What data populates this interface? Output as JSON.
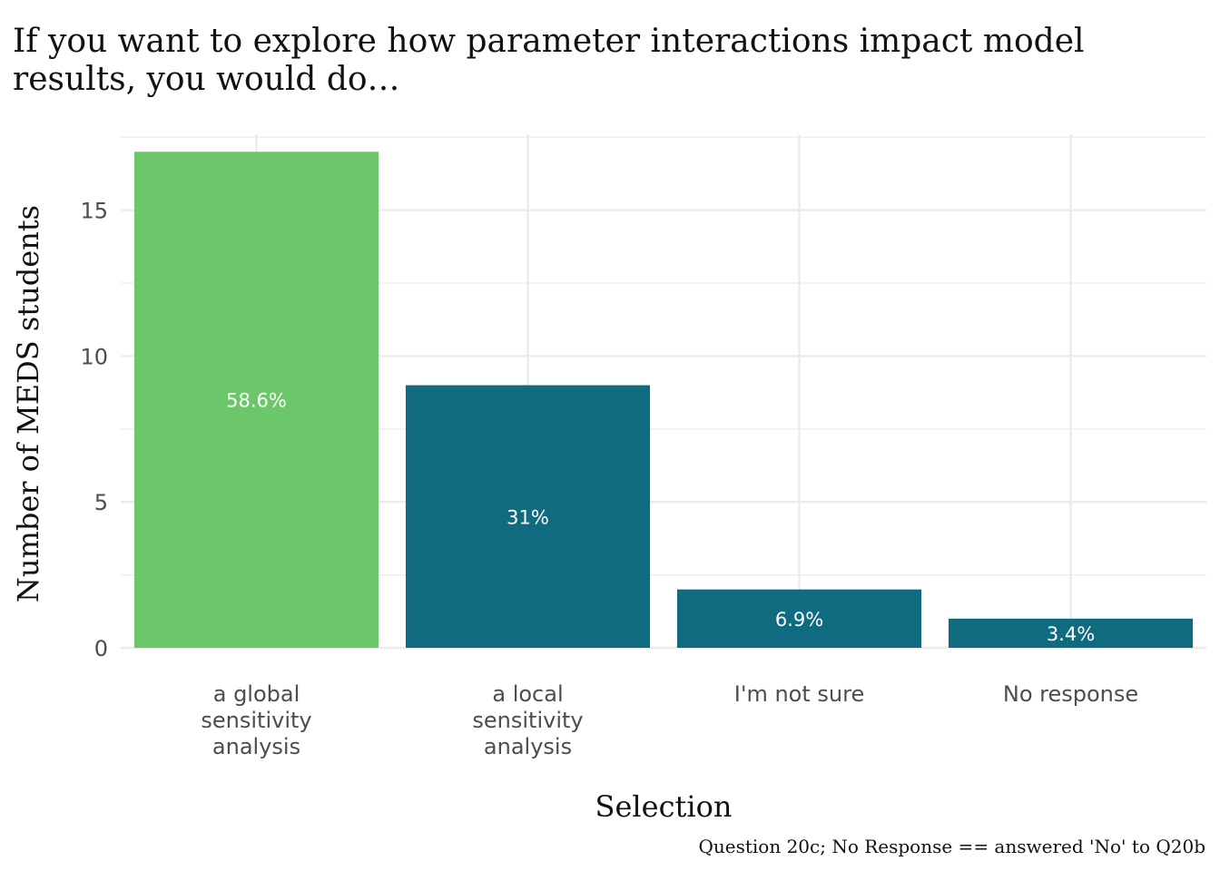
{
  "chart_data": {
    "type": "bar",
    "title_lines": [
      "If you want to explore how parameter interactions impact model",
      "results, you would do…"
    ],
    "categories": [
      [
        "a global",
        "sensitivity",
        "analysis"
      ],
      [
        "a local",
        "sensitivity",
        "analysis"
      ],
      [
        "I'm not sure"
      ],
      [
        "No response"
      ]
    ],
    "values": [
      17,
      9,
      2,
      1
    ],
    "data_labels": [
      "58.6%",
      "31%",
      "6.9%",
      "3.4%"
    ],
    "bar_colors": [
      "#6cc66a",
      "#106a80",
      "#106a80",
      "#106a80"
    ],
    "xlabel": "Selection",
    "ylabel": "Number of MEDS students",
    "caption": "Question 20c; No Response == answered 'No' to Q20b",
    "ylim": [
      0,
      17.6
    ],
    "yticks": [
      0,
      5,
      10,
      15
    ],
    "grid": true,
    "grid_color": "#ebebeb",
    "tick_label_color": "#4d4d4d",
    "text_color": "#111111",
    "background": "#ffffff"
  }
}
